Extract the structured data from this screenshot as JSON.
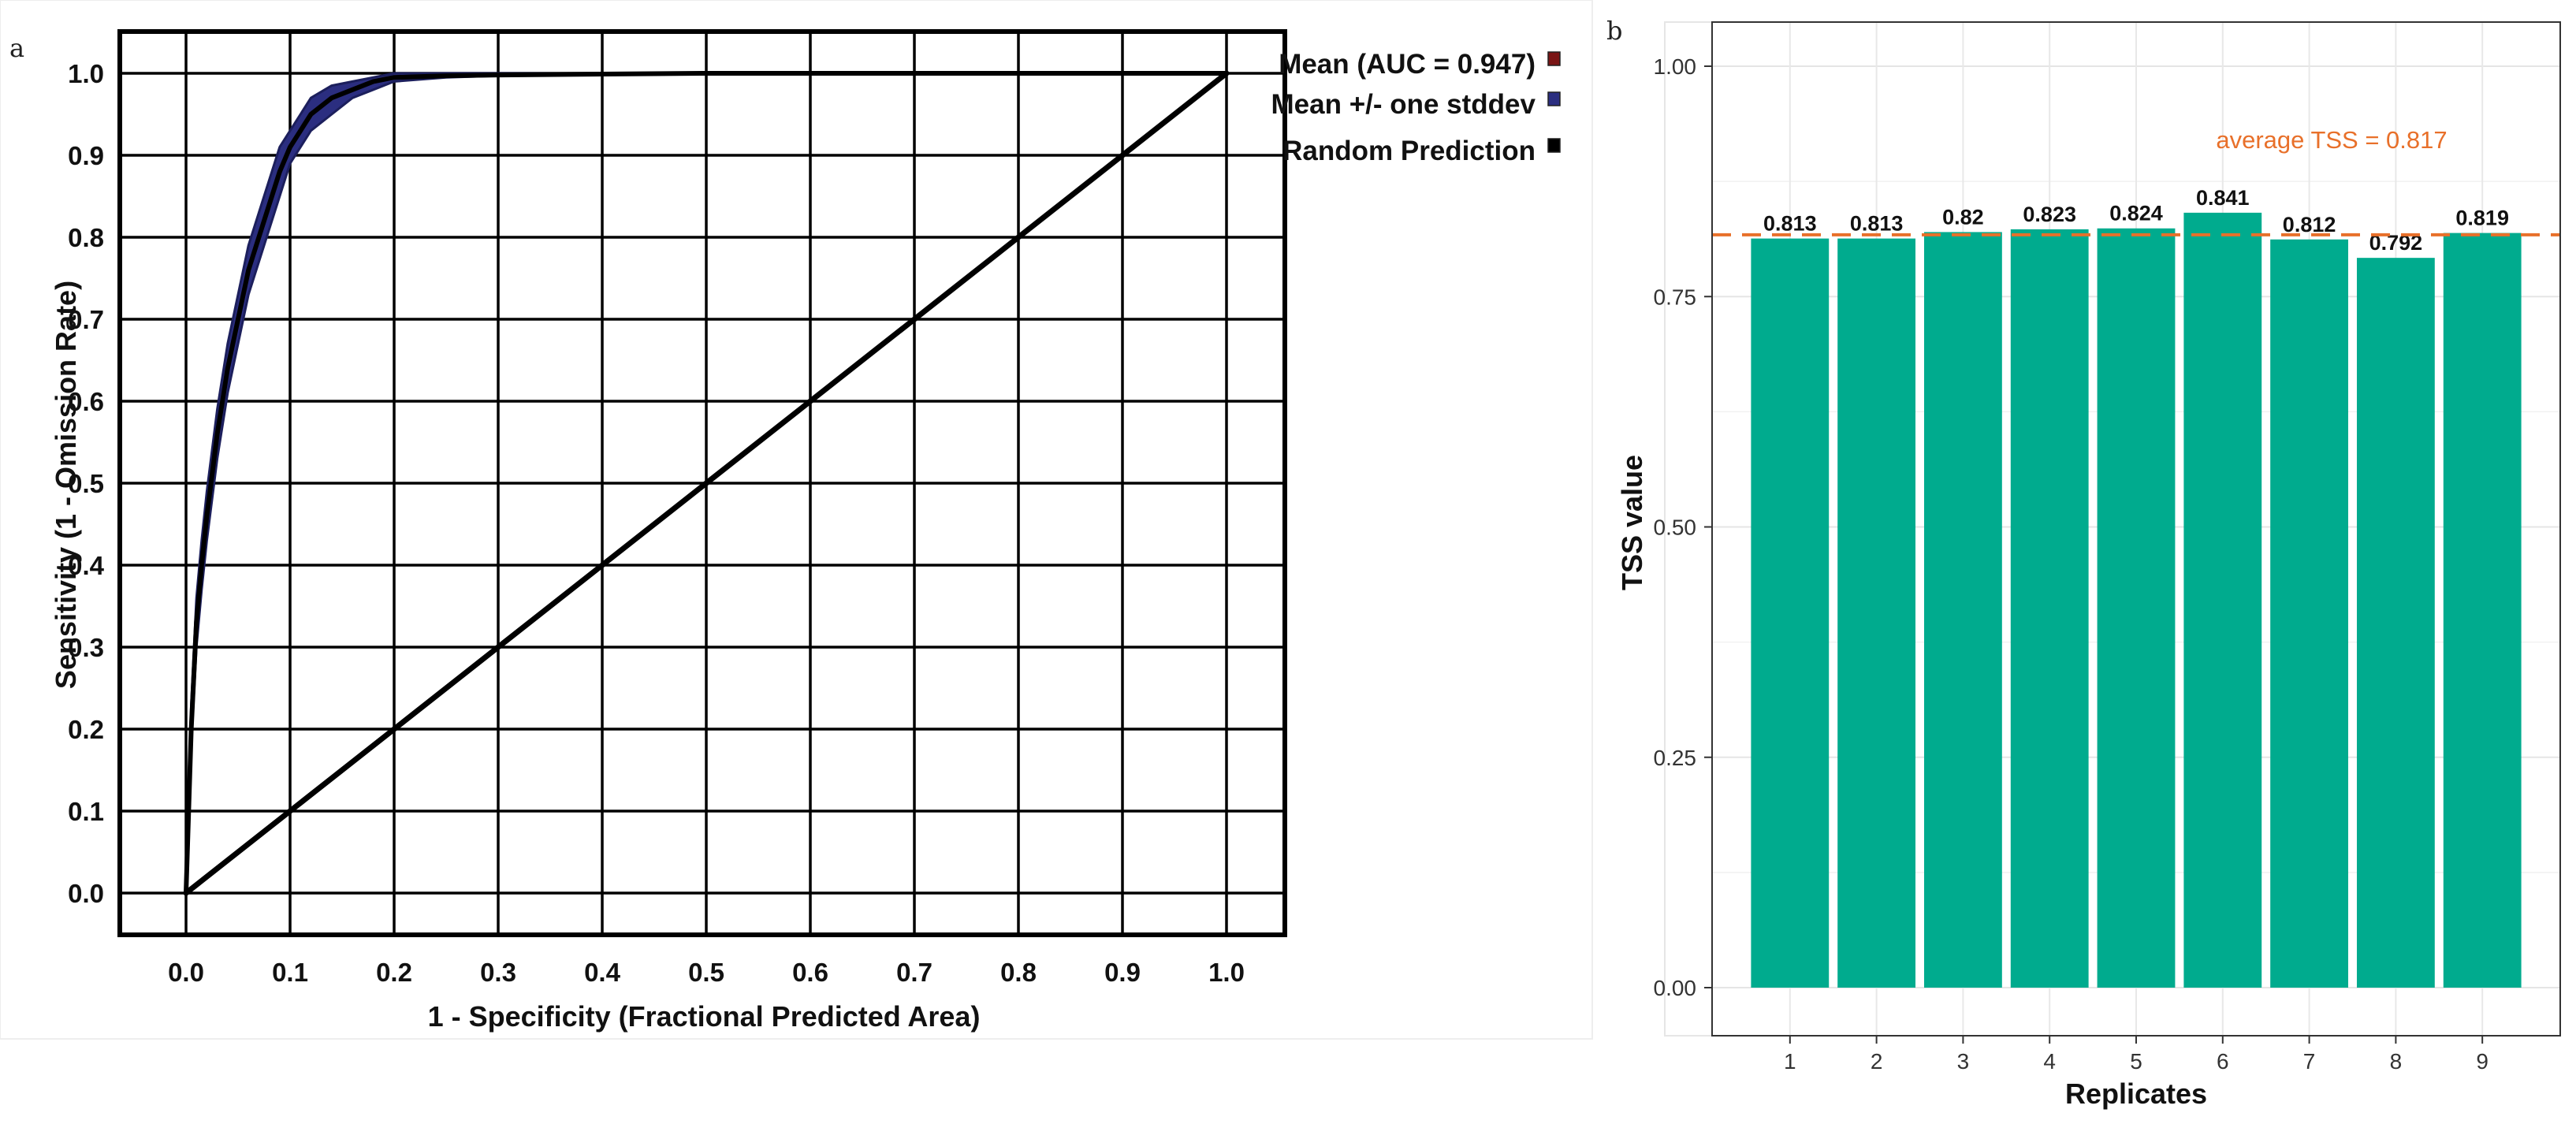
{
  "panels": {
    "left_letter": "a",
    "right_letter": "b"
  },
  "colors": {
    "band": "#2b2e80",
    "band_edge": "#1c1f5c",
    "bar": "#00ab8e",
    "avg_line": "#e8702a",
    "legend_mean": "#7a1515",
    "legend_sd": "#2b2e80",
    "legend_random": "#000000"
  },
  "chart_data": [
    {
      "type": "line",
      "xlabel": "1 - Specificity (Fractional Predicted Area)",
      "ylabel": "Sensitivity (1 - Omission Rate)",
      "xlim": [
        0,
        1
      ],
      "ylim": [
        0,
        1
      ],
      "xticks": [
        "0.0",
        "0.1",
        "0.2",
        "0.3",
        "0.4",
        "0.5",
        "0.6",
        "0.7",
        "0.8",
        "0.9",
        "1.0"
      ],
      "yticks": [
        "0.0",
        "0.1",
        "0.2",
        "0.3",
        "0.4",
        "0.5",
        "0.6",
        "0.7",
        "0.8",
        "0.9",
        "1.0"
      ],
      "grid": true,
      "legend_position": "top-right, outside",
      "legend": [
        "Mean (AUC = 0.947)",
        "Mean +/- one stddev",
        "Random Prediction"
      ],
      "series": [
        {
          "name": "Mean (AUC = 0.947)",
          "x": [
            0,
            0.005,
            0.01,
            0.015,
            0.02,
            0.03,
            0.04,
            0.05,
            0.06,
            0.07,
            0.08,
            0.09,
            0.1,
            0.12,
            0.14,
            0.16,
            0.18,
            0.2,
            0.25,
            0.3,
            0.4,
            0.5,
            0.6,
            0.7,
            0.8,
            0.9,
            1.0
          ],
          "y": [
            0,
            0.2,
            0.33,
            0.4,
            0.46,
            0.56,
            0.64,
            0.7,
            0.76,
            0.8,
            0.84,
            0.88,
            0.91,
            0.95,
            0.97,
            0.98,
            0.99,
            0.995,
            0.997,
            0.998,
            0.999,
            1.0,
            1.0,
            1.0,
            1.0,
            1.0,
            1.0
          ],
          "y_lower": [
            0,
            0.18,
            0.3,
            0.37,
            0.43,
            0.53,
            0.61,
            0.67,
            0.73,
            0.77,
            0.81,
            0.85,
            0.89,
            0.93,
            0.95,
            0.97,
            0.98,
            0.99,
            0.995,
            0.997,
            0.999,
            1.0,
            1.0,
            1.0,
            1.0,
            1.0,
            1.0
          ],
          "y_upper": [
            0,
            0.23,
            0.36,
            0.43,
            0.49,
            0.59,
            0.67,
            0.73,
            0.79,
            0.83,
            0.87,
            0.91,
            0.93,
            0.97,
            0.985,
            0.99,
            0.995,
            1.0,
            1.0,
            1.0,
            1.0,
            1.0,
            1.0,
            1.0,
            1.0,
            1.0,
            1.0
          ]
        },
        {
          "name": "Random Prediction",
          "x": [
            0,
            1
          ],
          "y": [
            0,
            1
          ]
        }
      ]
    },
    {
      "type": "bar",
      "xlabel": "Replicates",
      "ylabel": "TSS value",
      "categories": [
        "1",
        "2",
        "3",
        "4",
        "5",
        "6",
        "7",
        "8",
        "9"
      ],
      "values": [
        0.813,
        0.813,
        0.82,
        0.823,
        0.824,
        0.841,
        0.812,
        0.792,
        0.819
      ],
      "value_labels": [
        "0.813",
        "0.813",
        "0.82",
        "0.823",
        "0.824",
        "0.841",
        "0.812",
        "0.792",
        "0.819"
      ],
      "ylim": [
        0,
        1.0
      ],
      "yticks": [
        "0.00",
        "0.25",
        "0.50",
        "0.75",
        "1.00"
      ],
      "grid": true,
      "reference_line": {
        "value": 0.817,
        "label": "average TSS = 0.817",
        "style": "dashed"
      }
    }
  ]
}
